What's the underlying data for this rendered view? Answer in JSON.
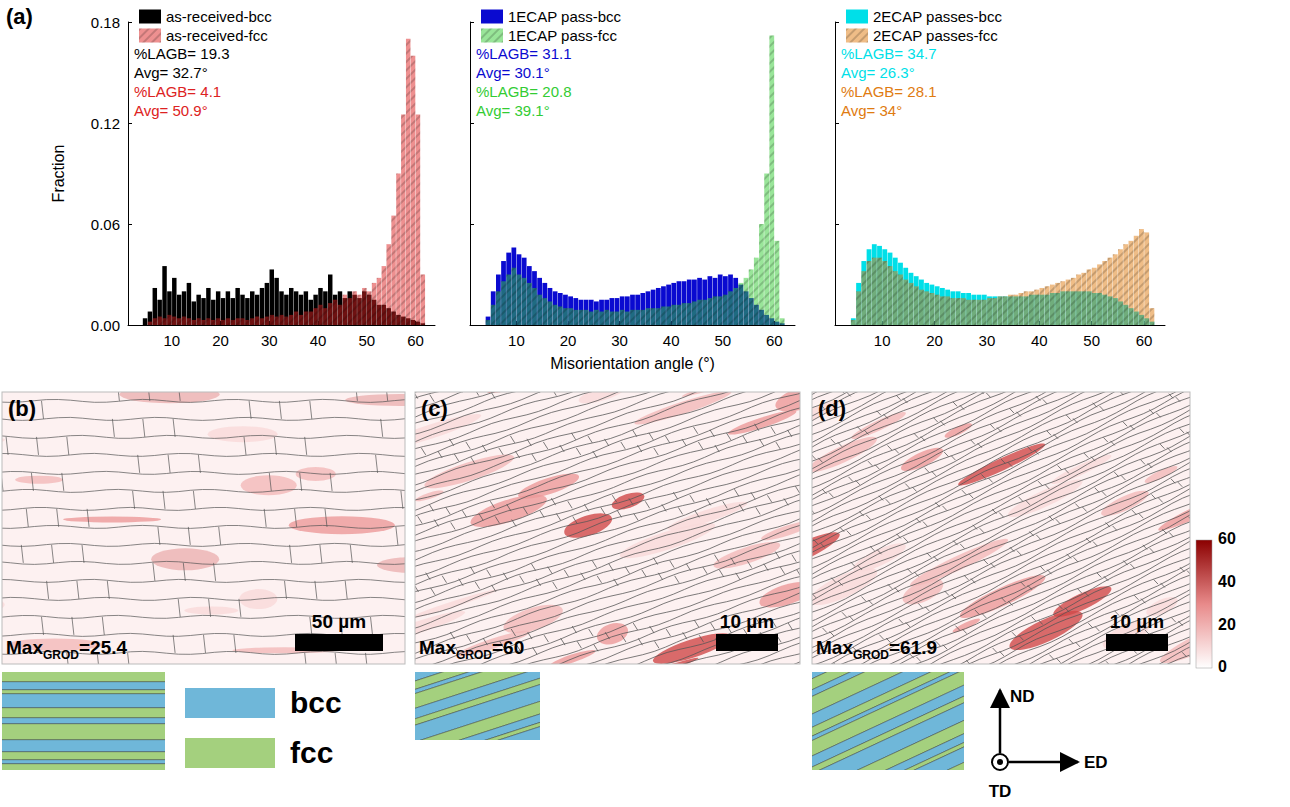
{
  "panel_label": "(a)",
  "chart_data": [
    {
      "type": "histogram",
      "y_label": "Fraction",
      "bins": [
        4,
        5,
        6,
        7,
        8,
        9,
        10,
        11,
        12,
        13,
        14,
        15,
        16,
        17,
        18,
        19,
        20,
        21,
        22,
        23,
        24,
        25,
        26,
        27,
        28,
        29,
        30,
        31,
        32,
        33,
        34,
        35,
        36,
        37,
        38,
        39,
        40,
        41,
        42,
        43,
        44,
        45,
        46,
        47,
        48,
        49,
        50,
        51,
        52,
        53,
        54,
        55,
        56,
        57,
        58,
        59,
        60,
        61,
        62
      ],
      "series": [
        {
          "name": "as-received-bcc",
          "color": "#000000",
          "annotations": [
            "%LAGB= 19.3",
            "Avg= 32.7°"
          ],
          "values": [
            0.004,
            0.008,
            0.022,
            0.015,
            0.035,
            0.02,
            0.028,
            0.018,
            0.02,
            0.025,
            0.014,
            0.018,
            0.016,
            0.022,
            0.015,
            0.02,
            0.016,
            0.02,
            0.016,
            0.022,
            0.018,
            0.016,
            0.02,
            0.018,
            0.022,
            0.025,
            0.033,
            0.028,
            0.02,
            0.018,
            0.022,
            0.02,
            0.018,
            0.02,
            0.015,
            0.018,
            0.022,
            0.02,
            0.03,
            0.018,
            0.02,
            0.016,
            0.02,
            0.018,
            0.016,
            0.02,
            0.018,
            0.015,
            0.012,
            0.012,
            0.01,
            0.008,
            0.006,
            0.005,
            0.004,
            0.003,
            0.002,
            0.001
          ]
        },
        {
          "name": "as-received-fcc",
          "color": "#dd2222",
          "annotations": [
            "%LAGB= 4.1",
            "Avg= 50.9°"
          ],
          "values": [
            0,
            0.002,
            0.004,
            0.005,
            0.004,
            0.006,
            0.005,
            0.004,
            0.005,
            0.004,
            0.003,
            0.004,
            0.003,
            0.004,
            0.003,
            0.004,
            0.003,
            0.004,
            0.003,
            0.004,
            0.004,
            0.003,
            0.004,
            0.005,
            0.004,
            0.005,
            0.006,
            0.005,
            0.006,
            0.005,
            0.006,
            0.008,
            0.006,
            0.008,
            0.008,
            0.01,
            0.012,
            0.01,
            0.013,
            0.015,
            0.012,
            0.018,
            0.016,
            0.02,
            0.018,
            0.022,
            0.02,
            0.025,
            0.028,
            0.035,
            0.048,
            0.065,
            0.09,
            0.125,
            0.17,
            0.16,
            0.125,
            0.03
          ]
        }
      ],
      "xlim": [
        1,
        64
      ],
      "xticks": [
        10,
        20,
        30,
        40,
        50,
        60
      ],
      "ylim": [
        0,
        0.18
      ],
      "yticks": [
        {
          "value": 0,
          "label": "0.00"
        },
        0.06,
        0.12,
        0.18
      ],
      "grid": false,
      "legend": "upper left",
      "tick_labels": true
    },
    {
      "type": "histogram",
      "x_label": "Misorientation angle (°)",
      "bins": [
        4,
        5,
        6,
        7,
        8,
        9,
        10,
        11,
        12,
        13,
        14,
        15,
        16,
        17,
        18,
        19,
        20,
        21,
        22,
        23,
        24,
        25,
        26,
        27,
        28,
        29,
        30,
        31,
        32,
        33,
        34,
        35,
        36,
        37,
        38,
        39,
        40,
        41,
        42,
        43,
        44,
        45,
        46,
        47,
        48,
        49,
        50,
        51,
        52,
        53,
        54,
        55,
        56,
        57,
        58,
        59,
        60,
        61,
        62
      ],
      "series": [
        {
          "name": "1ECAP pass-bcc",
          "color": "#0a0ad0",
          "annotations": [
            "%LAGB= 31.1",
            "Avg= 30.1°"
          ],
          "values": [
            0.005,
            0.02,
            0.03,
            0.038,
            0.043,
            0.046,
            0.042,
            0.04,
            0.035,
            0.032,
            0.028,
            0.025,
            0.022,
            0.02,
            0.019,
            0.018,
            0.017,
            0.016,
            0.015,
            0.015,
            0.015,
            0.014,
            0.015,
            0.015,
            0.016,
            0.016,
            0.017,
            0.017,
            0.018,
            0.018,
            0.019,
            0.02,
            0.021,
            0.022,
            0.023,
            0.024,
            0.025,
            0.026,
            0.026,
            0.027,
            0.027,
            0.028,
            0.027,
            0.029,
            0.028,
            0.03,
            0.029,
            0.03,
            0.028,
            0.024,
            0.02,
            0.016,
            0.012,
            0.009,
            0.006,
            0.004,
            0.002,
            0.001
          ]
        },
        {
          "name": "1ECAP pass-fcc",
          "color": "#33cc33",
          "annotations": [
            "%LAGB= 20.8",
            "Avg= 39.1°"
          ],
          "values": [
            0.003,
            0.012,
            0.02,
            0.026,
            0.03,
            0.034,
            0.03,
            0.028,
            0.025,
            0.022,
            0.018,
            0.016,
            0.014,
            0.012,
            0.011,
            0.01,
            0.01,
            0.009,
            0.009,
            0.009,
            0.008,
            0.009,
            0.008,
            0.009,
            0.008,
            0.008,
            0.009,
            0.008,
            0.009,
            0.009,
            0.009,
            0.01,
            0.01,
            0.01,
            0.011,
            0.011,
            0.012,
            0.012,
            0.013,
            0.013,
            0.014,
            0.015,
            0.015,
            0.016,
            0.017,
            0.017,
            0.018,
            0.02,
            0.022,
            0.025,
            0.028,
            0.033,
            0.04,
            0.06,
            0.09,
            0.172,
            0.05,
            0.004
          ]
        }
      ],
      "xlim": [
        1,
        64
      ],
      "xticks": [
        10,
        20,
        30,
        40,
        50,
        60
      ],
      "ylim": [
        0,
        0.18
      ],
      "yticks": [
        {
          "value": 0,
          "label": "0.00"
        },
        0.06,
        0.12,
        0.18
      ],
      "grid": false,
      "legend": "upper left",
      "tick_labels": "x"
    },
    {
      "type": "histogram",
      "bins": [
        4,
        5,
        6,
        7,
        8,
        9,
        10,
        11,
        12,
        13,
        14,
        15,
        16,
        17,
        18,
        19,
        20,
        21,
        22,
        23,
        24,
        25,
        26,
        27,
        28,
        29,
        30,
        31,
        32,
        33,
        34,
        35,
        36,
        37,
        38,
        39,
        40,
        41,
        42,
        43,
        44,
        45,
        46,
        47,
        48,
        49,
        50,
        51,
        52,
        53,
        54,
        55,
        56,
        57,
        58,
        59,
        60,
        61,
        62
      ],
      "series": [
        {
          "name": "2ECAP passes-bcc",
          "color": "#00dfe8",
          "annotations": [
            "%LAGB= 34.7",
            "Avg= 26.3°"
          ],
          "values": [
            0.004,
            0.025,
            0.038,
            0.045,
            0.048,
            0.047,
            0.045,
            0.043,
            0.04,
            0.037,
            0.034,
            0.031,
            0.029,
            0.027,
            0.025,
            0.024,
            0.023,
            0.022,
            0.021,
            0.02,
            0.02,
            0.019,
            0.019,
            0.018,
            0.018,
            0.018,
            0.017,
            0.017,
            0.017,
            0.017,
            0.017,
            0.017,
            0.017,
            0.017,
            0.018,
            0.018,
            0.018,
            0.018,
            0.019,
            0.019,
            0.02,
            0.02,
            0.02,
            0.02,
            0.02,
            0.02,
            0.019,
            0.019,
            0.018,
            0.017,
            0.016,
            0.014,
            0.012,
            0.01,
            0.008,
            0.006,
            0.004,
            0.002
          ]
        },
        {
          "name": "2ECAP passes-fcc",
          "color": "#e07b10",
          "annotations": [
            "%LAGB= 28.1",
            "Avg= 34°"
          ],
          "values": [
            0.003,
            0.02,
            0.032,
            0.038,
            0.04,
            0.04,
            0.038,
            0.035,
            0.032,
            0.03,
            0.027,
            0.025,
            0.023,
            0.021,
            0.02,
            0.019,
            0.018,
            0.017,
            0.017,
            0.016,
            0.016,
            0.016,
            0.015,
            0.015,
            0.015,
            0.015,
            0.016,
            0.016,
            0.017,
            0.017,
            0.018,
            0.018,
            0.019,
            0.02,
            0.02,
            0.021,
            0.022,
            0.023,
            0.024,
            0.025,
            0.026,
            0.027,
            0.028,
            0.03,
            0.031,
            0.033,
            0.034,
            0.036,
            0.038,
            0.04,
            0.042,
            0.045,
            0.048,
            0.05,
            0.053,
            0.057,
            0.055,
            0.01
          ]
        }
      ],
      "xlim": [
        1,
        64
      ],
      "xticks": [
        10,
        20,
        30,
        40,
        50,
        60
      ],
      "ylim": [
        0,
        0.18
      ],
      "yticks": [
        {
          "value": 0,
          "label": "0.00"
        },
        0.06,
        0.12,
        0.18
      ],
      "grid": false,
      "legend": "upper left",
      "tick_labels": "x"
    }
  ],
  "maps": [
    {
      "label": "(b)",
      "max_grod": [
        "Max",
        "GROD",
        "=25.4"
      ],
      "scale_bar": "50 µm"
    },
    {
      "label": "(c)",
      "max_grod": [
        "Max",
        "GROD",
        "=60"
      ],
      "scale_bar": "10 µm"
    },
    {
      "label": "(d)",
      "max_grod": [
        "Max",
        "GROD",
        "=61.9"
      ],
      "scale_bar": "10 µm"
    }
  ],
  "colorbar": {
    "range": [
      0,
      60
    ],
    "ticks": [
      0,
      20,
      40,
      60
    ],
    "colors": [
      "#ffffff",
      "#8b0000"
    ]
  },
  "phases": [
    {
      "name": "bcc",
      "color": "#6fb7d9"
    },
    {
      "name": "fcc",
      "color": "#a4d07e"
    }
  ],
  "directions": {
    "up": "ND",
    "right": "ED",
    "out": "TD"
  }
}
